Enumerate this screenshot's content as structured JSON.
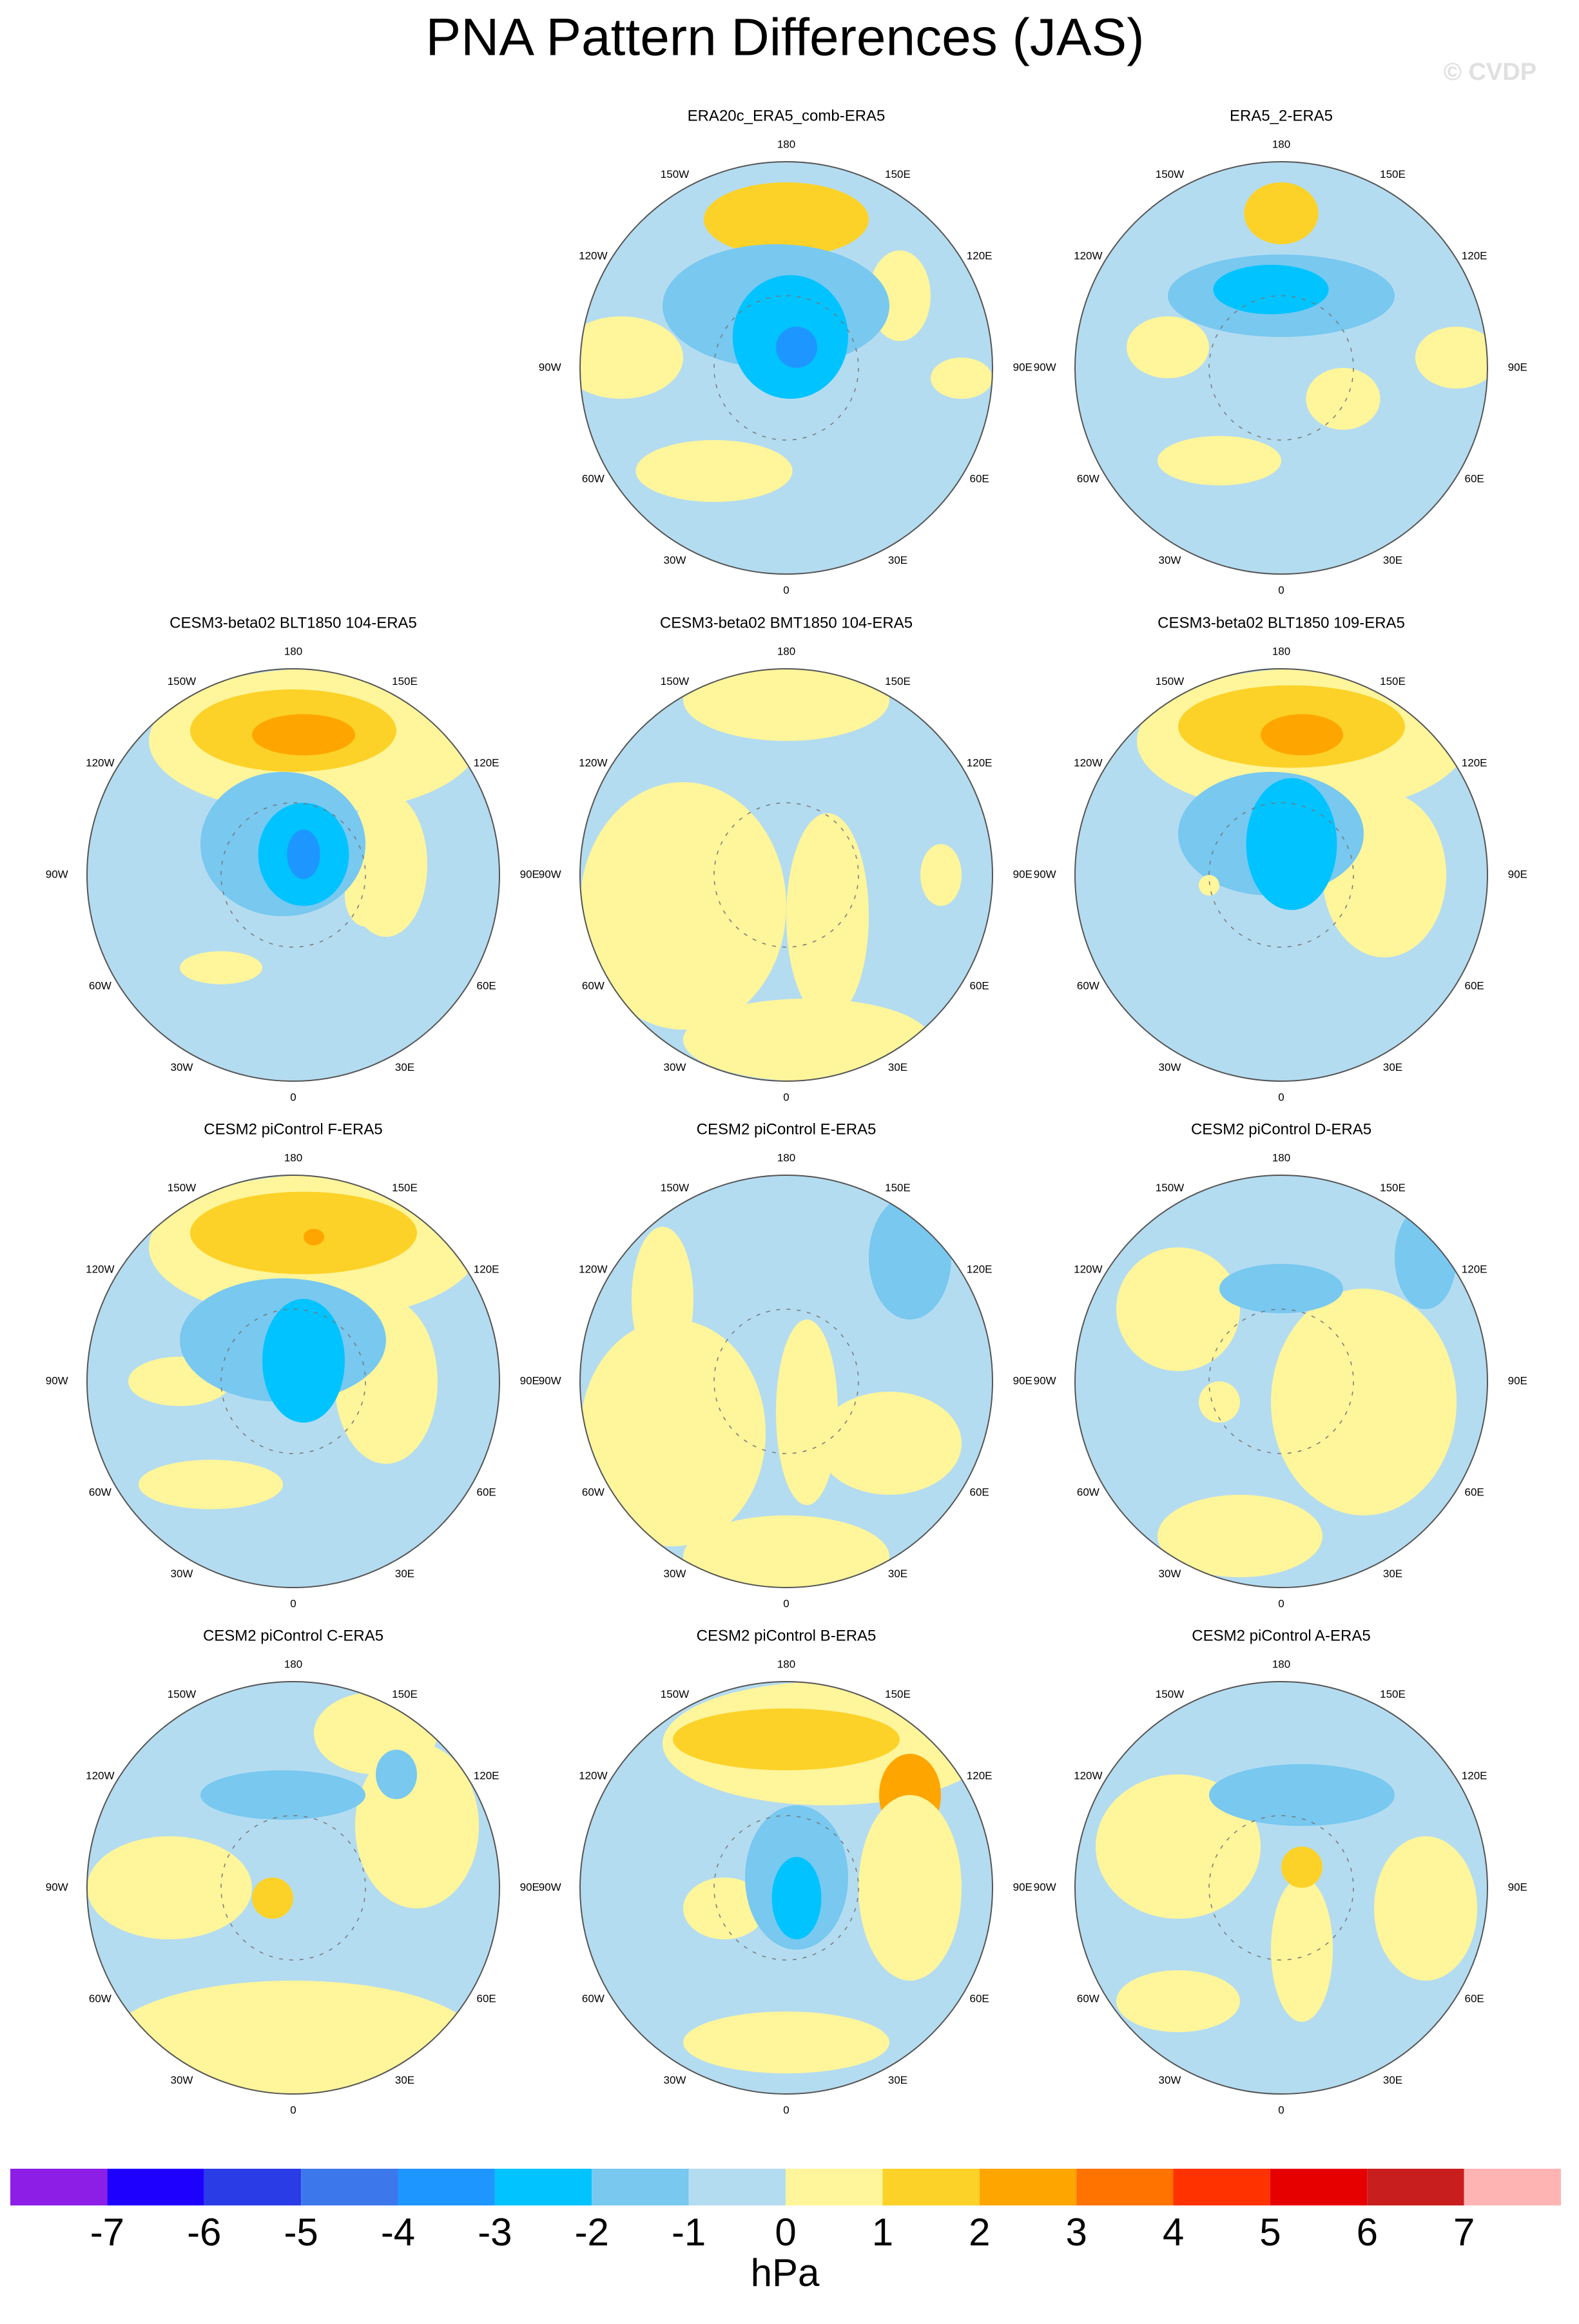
{
  "title": "PNA Pattern Differences (JAS)",
  "watermark": "© CVDP",
  "panels": [
    {
      "title": "ERA20c_ERA5_comb-ERA5"
    },
    {
      "title": "ERA5_2-ERA5"
    },
    {
      "title": "CESM3-beta02 BLT1850 104-ERA5"
    },
    {
      "title": "CESM3-beta02 BMT1850 104-ERA5"
    },
    {
      "title": "CESM3-beta02 BLT1850 109-ERA5"
    },
    {
      "title": "CESM2 piControl F-ERA5"
    },
    {
      "title": "CESM2 piControl E-ERA5"
    },
    {
      "title": "CESM2 piControl D-ERA5"
    },
    {
      "title": "CESM2 piControl C-ERA5"
    },
    {
      "title": "CESM2 piControl B-ERA5"
    },
    {
      "title": "CESM2 piControl A-ERA5"
    }
  ],
  "longitude_labels": [
    "180",
    "150E",
    "120E",
    "90E",
    "60E",
    "30E",
    "0",
    "30W",
    "60W",
    "90W",
    "120W",
    "150W"
  ],
  "colorbar": {
    "ticks": [
      -7,
      -6,
      -5,
      -4,
      -3,
      -2,
      -1,
      0,
      1,
      2,
      3,
      4,
      5,
      6,
      7
    ],
    "colors": [
      "#8c1ee6",
      "#1e00ff",
      "#2a3ce6",
      "#3c78eb",
      "#1e96ff",
      "#00c3ff",
      "#78c8f0",
      "#b4dcf0",
      "#fff59b",
      "#fcd228",
      "#ffa500",
      "#ff7300",
      "#ff3200",
      "#e60000",
      "#c81e1e",
      "#ffb4b4"
    ],
    "label": "hPa"
  }
}
